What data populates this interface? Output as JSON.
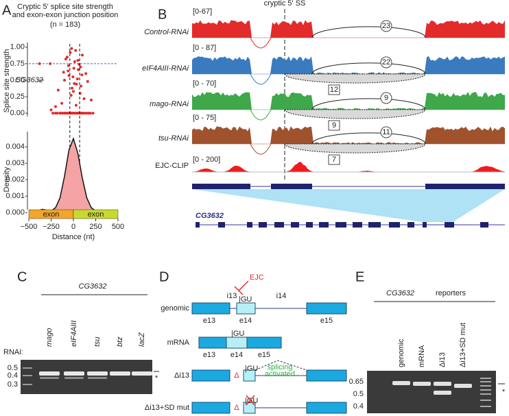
{
  "panel_labels": [
    "A",
    "B",
    "C",
    "D",
    "E"
  ],
  "chart_data": [
    {
      "type": "scatter",
      "title": [
        "Cryptic 5' splice site strength",
        "and exon-exon junction position"
      ],
      "subtitle": "(n = 183)",
      "ylabel": "Splice site strength",
      "annotation": "CG3632",
      "color": "#e32b2b",
      "hline": 0.75,
      "hline_color": "#4a5fd0",
      "vlines": [
        -40,
        70
      ],
      "xlim": [
        -500,
        500
      ],
      "ylim": [
        -0.05,
        1.05
      ],
      "yticks": [
        {
          "value": 0,
          "label": "0.00"
        },
        {
          "value": 0.25,
          "label": "0.25"
        },
        {
          "value": 0.5,
          "label": "0.50"
        },
        {
          "value": 0.75,
          "label": "0.75"
        },
        {
          "value": 1,
          "label": "1.00"
        }
      ],
      "x": [
        -230,
        -200,
        -180,
        -150,
        -140,
        -120,
        -100,
        -90,
        -80,
        -60,
        -50,
        -40,
        -30,
        -20,
        -10,
        0,
        10,
        20,
        30,
        40,
        50,
        60,
        70,
        80,
        90,
        100,
        110,
        130,
        150,
        170,
        190,
        220,
        -260,
        -170,
        -110,
        -70,
        -35,
        -5,
        15,
        35,
        55,
        75,
        95,
        120,
        160,
        -55,
        25,
        -15,
        5,
        45,
        -130,
        -85,
        -25,
        65,
        85,
        140,
        -200,
        -100,
        0,
        100,
        200,
        -50,
        50,
        -250,
        -380,
        -20,
        10,
        -60,
        30,
        80
      ],
      "y": [
        0.0,
        0.0,
        0.0,
        0.0,
        0.0,
        0.0,
        0.0,
        0.0,
        0.0,
        0.0,
        0.0,
        0.0,
        0.0,
        0.0,
        0.0,
        0.0,
        0.0,
        0.0,
        0.0,
        0.0,
        0.0,
        0.0,
        0.0,
        0.0,
        0.0,
        0.0,
        0.0,
        0.0,
        0.0,
        0.0,
        0.0,
        0.0,
        0.75,
        0.35,
        0.62,
        0.85,
        0.92,
        0.55,
        0.78,
        0.44,
        0.66,
        0.3,
        0.58,
        0.22,
        0.48,
        0.72,
        0.95,
        0.38,
        0.68,
        0.52,
        0.15,
        0.82,
        0.27,
        0.74,
        0.41,
        0.6,
        0.1,
        0.5,
        0.33,
        0.88,
        0.2,
        0.57,
        0.8,
        0.05,
        0.75,
        0.98,
        0.45,
        0.64,
        0.12,
        0.7
      ]
    },
    {
      "type": "area",
      "ylabel": "Density",
      "xlabel": "Distance (nt)",
      "fill": "#f4a4a4",
      "line": "#111111",
      "exon_labels": [
        "exon",
        "exon"
      ],
      "exon_colors": [
        "#f5a52a",
        "#c9d92c"
      ],
      "xlim": [
        -500,
        500
      ],
      "ylim": [
        -0.0002,
        0.0048
      ],
      "xticks": [
        {
          "value": -500,
          "label": "−500"
        },
        {
          "value": -250,
          "label": "−250"
        },
        0,
        250,
        500
      ],
      "yticks": [
        {
          "value": 0,
          "label": "0.000"
        },
        {
          "value": 0.001,
          "label": "0.001"
        },
        {
          "value": 0.002,
          "label": "0.002"
        },
        {
          "value": 0.003,
          "label": "0.003"
        },
        {
          "value": 0.004,
          "label": "0.004"
        }
      ],
      "x": [
        -500,
        -450,
        -400,
        -350,
        -300,
        -250,
        -200,
        -150,
        -100,
        -50,
        0,
        50,
        100,
        150,
        200,
        250,
        300,
        350,
        400,
        450,
        500
      ],
      "values": [
        2e-05,
        5e-05,
        0.0001,
        0.0002,
        0.00015,
        0.0001,
        0.0003,
        0.0009,
        0.0022,
        0.0038,
        0.0045,
        0.0036,
        0.0021,
        0.0009,
        0.0003,
        0.0001,
        5e-05,
        2e-05,
        1e-05,
        1e-05,
        0
      ]
    }
  ],
  "tracks": {
    "title": "cryptic 5' SS",
    "rows": [
      {
        "name": "Control-RNAi",
        "range": "[0-67]",
        "color": "#e32b2b",
        "junction": 23
      },
      {
        "name": "eIF4AIII-RNAi",
        "range": "[0 - 87]",
        "color": "#3a7bbf",
        "junction": 22,
        "cryptic": 12
      },
      {
        "name": "mago-RNAi",
        "range": "[0 - 70]",
        "color": "#3fa84a",
        "junction": 9,
        "cryptic": 9
      },
      {
        "name": "tsu-RNAi",
        "range": "[0 - 75]",
        "color": "#a0522d",
        "junction": 11,
        "cryptic": 7
      }
    ],
    "clip": {
      "name": "EJC-CLIP",
      "range": "[0 - 200]",
      "color": "#ee1c1c"
    },
    "gene": "CG3632"
  },
  "gel_c": {
    "gene": "CG3632",
    "rnai": "RNAi:",
    "lanes": [
      "mago",
      "eIF4AIII",
      "tsu",
      "btz",
      "lacZ"
    ],
    "markers": [
      0.5,
      0.4,
      0.3
    ],
    "star": "*"
  },
  "schematic": {
    "ejc": "EJC",
    "rows": [
      "genomic",
      "mRNA",
      "Δi13",
      "Δi13+SD mut"
    ],
    "introns": [
      "i13",
      "i14"
    ],
    "exons": [
      "e13",
      "e14",
      "e15"
    ],
    "gu": "|GU",
    "delta": "Δ",
    "activated": [
      "splicing",
      "activated"
    ]
  },
  "gel_e": {
    "gene": "CG3632",
    "suffix": "reporters",
    "lanes": [
      "genomic",
      "mRNA",
      "Δi13",
      "Δi13+SD mut"
    ],
    "markers": [
      0.65,
      0.5,
      0.4
    ],
    "star": "*"
  }
}
